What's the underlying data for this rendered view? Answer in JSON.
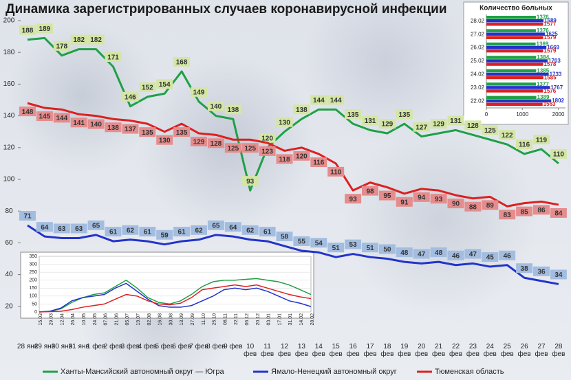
{
  "chart_data": [
    {
      "type": "line",
      "title": "Динамика зарегистрированных случаев коронавирусной инфекции",
      "categories": [
        "28 янв",
        "29 янв",
        "30 янв",
        "31 янв",
        "1 фев",
        "2 фев",
        "3 фев",
        "4 фев",
        "5 фев",
        "6 фев",
        "7 фев",
        "8 фев",
        "9 фев",
        "10 фев",
        "11 фев",
        "12 фев",
        "13 фев",
        "14 фев",
        "15 фев",
        "16 фев",
        "17 фев",
        "18 фев",
        "19 фев",
        "20 фев",
        "21 фев",
        "22 фев",
        "23 фев",
        "24 фев",
        "25 фев",
        "26 фев",
        "27 фев",
        "28 фев"
      ],
      "series": [
        {
          "name": "Ханты-Мансийский автономный округ — Югра",
          "color": "#1fa046",
          "label_color": "#d3e6a4",
          "values": [
            188,
            189,
            178,
            182,
            182,
            171,
            146,
            152,
            154,
            168,
            149,
            140,
            138,
            93,
            120,
            130,
            138,
            144,
            144,
            135,
            131,
            129,
            135,
            127,
            129,
            131,
            128,
            125,
            122,
            116,
            119,
            110
          ]
        },
        {
          "name": "Ямало-Ненецкий автономный округ",
          "color": "#2233cc",
          "label_color": "#a3bde0",
          "values": [
            71,
            64,
            63,
            63,
            65,
            61,
            62,
            61,
            59,
            61,
            62,
            65,
            64,
            62,
            61,
            58,
            55,
            54,
            51,
            53,
            51,
            50,
            48,
            47,
            48,
            46,
            47,
            45,
            46,
            38,
            36,
            34
          ]
        },
        {
          "name": "Тюменская область",
          "color": "#dd2020",
          "label_color": "#e58c8c",
          "values": [
            148,
            145,
            144,
            141,
            140,
            138,
            137,
            135,
            130,
            135,
            129,
            128,
            125,
            125,
            123,
            118,
            120,
            116,
            110,
            93,
            98,
            95,
            91,
            94,
            93,
            90,
            88,
            89,
            83,
            85,
            86,
            84
          ]
        }
      ],
      "ylim": [
        0,
        200
      ],
      "yticks": [
        20,
        40,
        60,
        80,
        100,
        120,
        140,
        160,
        180,
        200
      ]
    },
    {
      "type": "hbar",
      "title": "Количество больных",
      "categories": [
        "28.02",
        "27.02",
        "26.02",
        "25.02",
        "24.02",
        "23.02",
        "22.02"
      ],
      "series": [
        {
          "color": "#1fa046",
          "values": [
            1376,
            1376,
            1369,
            1384,
            1385,
            1377,
            1389
          ]
        },
        {
          "color": "#2233cc",
          "values": [
            1589,
            1625,
            1669,
            1703,
            1733,
            1767,
            1802
          ]
        },
        {
          "color": "#dd2020",
          "values": [
            1577,
            1579,
            1579,
            1578,
            1585,
            1576,
            1563
          ]
        }
      ],
      "xlim": [
        0,
        2200
      ],
      "xticks": [
        0,
        1000,
        2000
      ]
    },
    {
      "type": "line",
      "categories": [
        "15.03",
        "29.03",
        "12.04",
        "26.04",
        "10.05",
        "24.05",
        "07.06",
        "21.06",
        "05.07",
        "19.07",
        "02.08",
        "16.08",
        "30.08",
        "13.09",
        "27.09",
        "11.10",
        "25.10",
        "08.11",
        "22.11",
        "06.12",
        "20.12",
        "03.01",
        "17.01",
        "31.01",
        "14.02",
        "28.02"
      ],
      "series": [
        {
          "color": "#1fa046",
          "values": [
            0,
            5,
            20,
            60,
            90,
            110,
            120,
            160,
            200,
            150,
            90,
            60,
            50,
            70,
            110,
            160,
            190,
            200,
            200,
            205,
            210,
            200,
            190,
            170,
            140,
            110
          ]
        },
        {
          "color": "#2233cc",
          "values": [
            0,
            5,
            25,
            70,
            90,
            100,
            110,
            150,
            180,
            130,
            80,
            40,
            30,
            30,
            40,
            70,
            100,
            140,
            150,
            140,
            150,
            130,
            100,
            70,
            55,
            34
          ]
        },
        {
          "color": "#dd2020",
          "values": [
            0,
            2,
            5,
            15,
            30,
            40,
            50,
            80,
            110,
            100,
            70,
            50,
            45,
            55,
            90,
            140,
            150,
            160,
            170,
            160,
            170,
            150,
            130,
            110,
            95,
            84
          ]
        }
      ],
      "ylim": [
        0,
        350
      ],
      "yticks": [
        0,
        50,
        100,
        150,
        200,
        250,
        300,
        350
      ]
    }
  ]
}
